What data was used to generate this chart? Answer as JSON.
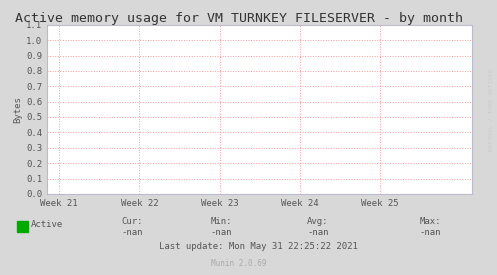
{
  "title": "Active memory usage for VM TURNKEY FILESERVER - by month",
  "ylabel": "Bytes",
  "xlabels": [
    "Week 21",
    "Week 22",
    "Week 23",
    "Week 24",
    "Week 25"
  ],
  "xtick_positions": [
    0,
    1,
    2,
    3,
    4
  ],
  "ylim": [
    0.0,
    1.1
  ],
  "yticks": [
    0.0,
    0.1,
    0.2,
    0.3,
    0.4,
    0.5,
    0.6,
    0.7,
    0.8,
    0.9,
    1.0,
    1.1
  ],
  "bg_color": "#d8d8d8",
  "plot_bg_color": "#ffffff",
  "grid_color": "#ff9999",
  "title_color": "#333333",
  "axis_color": "#bbbbcc",
  "legend_label": "Active",
  "legend_color": "#00aa00",
  "cur_label": "Cur:",
  "cur_val": "-nan",
  "min_label": "Min:",
  "min_val": "-nan",
  "avg_label": "Avg:",
  "avg_val": "-nan",
  "max_label": "Max:",
  "max_val": "-nan",
  "last_update": "Last update: Mon May 31 22:25:22 2021",
  "munin_label": "Munin 2.0.69",
  "watermark": "RRDTOOL / TOBI OETIKER",
  "font_color": "#555555",
  "stats_color": "#555555",
  "tick_font_size": 6.5,
  "title_font_size": 9.5,
  "legend_font_size": 6.5,
  "stats_font_size": 6.5,
  "watermark_font_size": 4.5,
  "munin_font_size": 5.5
}
